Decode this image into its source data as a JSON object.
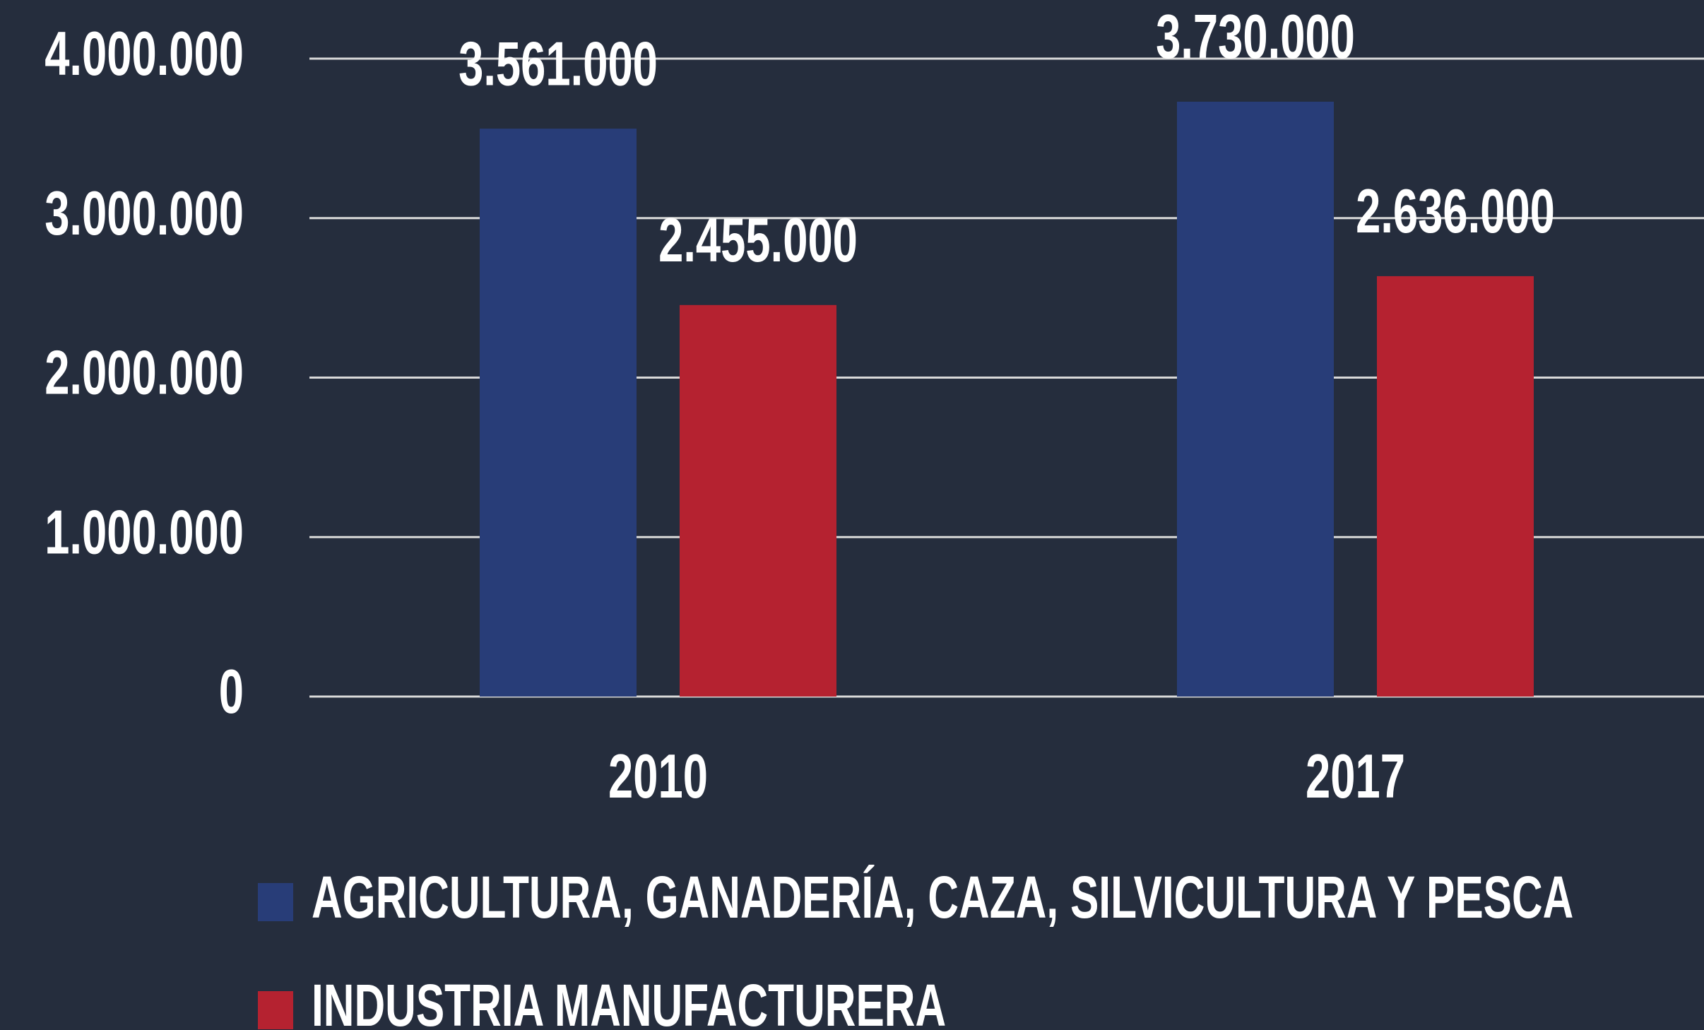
{
  "chart_data": {
    "type": "bar",
    "categories": [
      "2010",
      "2017"
    ],
    "series": [
      {
        "name": "AGRICULTURA, GANADERÍA, CAZA, SILVICULTURA Y PESCA",
        "color": "#283d78",
        "values": [
          3561000,
          3730000
        ],
        "value_labels": [
          "3.561.000",
          "3.730.000"
        ]
      },
      {
        "name": "INDUSTRIA MANUFACTURERA",
        "color": "#b52230",
        "values": [
          2455000,
          2636000
        ],
        "value_labels": [
          "2.455.000",
          "2.636.000"
        ]
      }
    ],
    "ylim": [
      0,
      4000000
    ],
    "yticks": [
      {
        "value": 0,
        "label": "0"
      },
      {
        "value": 1000000,
        "label": "1.000.000"
      },
      {
        "value": 2000000,
        "label": "2.000.000"
      },
      {
        "value": 3000000,
        "label": "3.000.000"
      },
      {
        "value": 4000000,
        "label": "4.000.000"
      }
    ],
    "grid": true,
    "legend": "bottom"
  }
}
